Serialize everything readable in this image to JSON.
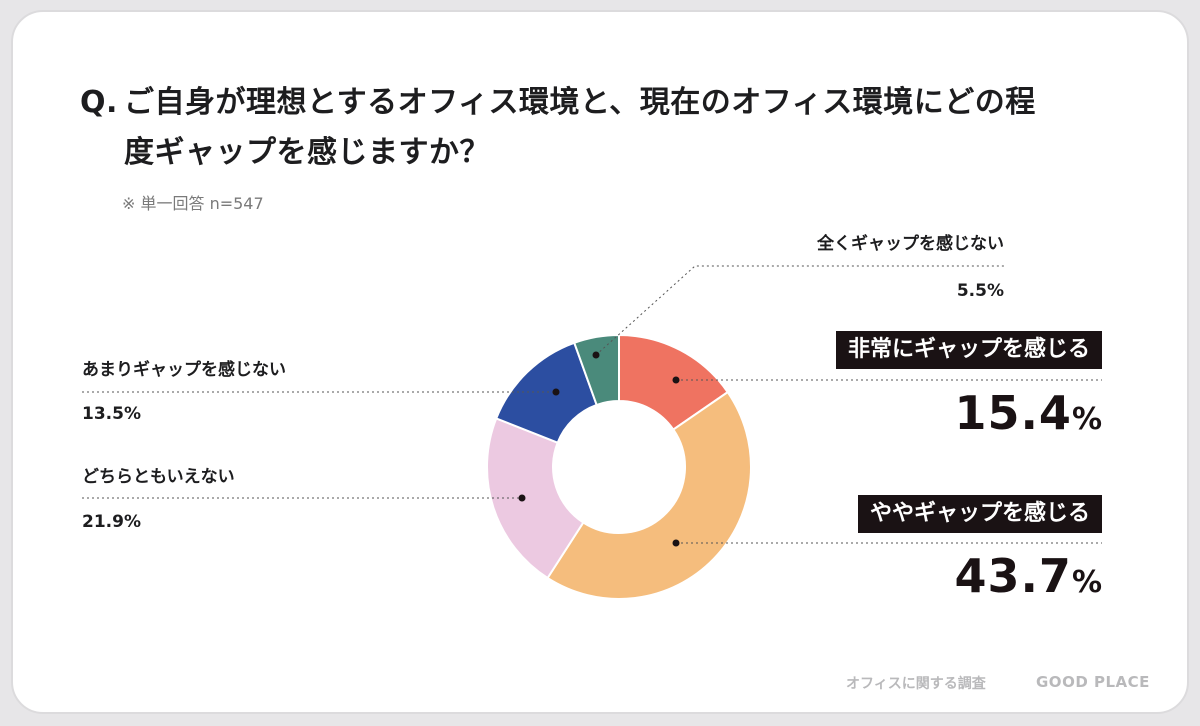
{
  "title": {
    "q_mark": "Q.",
    "line1": "ご自身が理想とするオフィス環境と、現在のオフィス環境にどの程",
    "line2": "度ギャップを感じますか？"
  },
  "note": "※ 単一回答 n=547",
  "chart_data": {
    "type": "pie",
    "donut": true,
    "title": "ご自身が理想とするオフィス環境と、現在のオフィス環境にどの程度ギャップを感じますか？",
    "categories": [
      "非常にギャップを感じる",
      "ややギャップを感じる",
      "どちらともいえない",
      "あまりギャップを感じない",
      "全くギャップを感じない"
    ],
    "values": [
      15.4,
      43.7,
      21.9,
      13.5,
      5.5
    ],
    "value_labels": [
      "15.4%",
      "43.7%",
      "21.9%",
      "13.5%",
      "5.5%"
    ],
    "colors": [
      "#ef7361",
      "#f5bd7d",
      "#ecc9e1",
      "#2c4ea1",
      "#4a8a7b"
    ],
    "order": "clockwise from top"
  },
  "labels": {
    "very": {
      "name": "非常にギャップを感じる",
      "num": "15.4",
      "sign": "%"
    },
    "somewhat": {
      "name": "ややギャップを感じる",
      "num": "43.7",
      "sign": "%"
    },
    "neutral": {
      "name": "どちらともいえない",
      "value": "21.9%"
    },
    "little": {
      "name": "あまりギャップを感じない",
      "value": "13.5%"
    },
    "none": {
      "name": "全くギャップを感じない",
      "value": "5.5%"
    }
  },
  "footer": {
    "survey": "オフィスに関する調査",
    "brand": "GOOD PLACE"
  }
}
